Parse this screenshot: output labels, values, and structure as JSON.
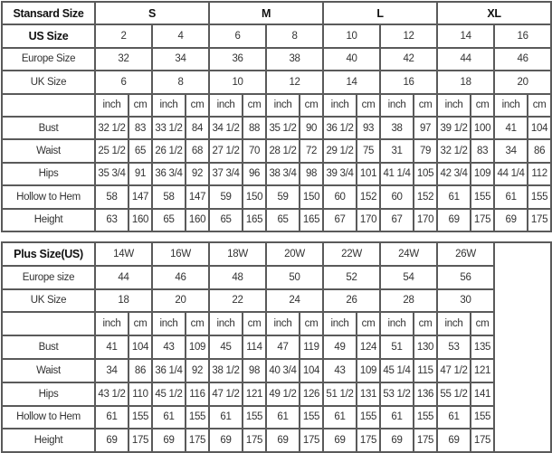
{
  "standard": {
    "title": "Stansard Size",
    "groups": [
      "S",
      "M",
      "L",
      "XL"
    ],
    "us_label": "US Size",
    "us": [
      "2",
      "4",
      "6",
      "8",
      "10",
      "12",
      "14",
      "16"
    ],
    "eu_label": "Europe Size",
    "eu": [
      "32",
      "34",
      "36",
      "38",
      "40",
      "42",
      "44",
      "46"
    ],
    "uk_label": "UK Size",
    "uk": [
      "6",
      "8",
      "10",
      "12",
      "14",
      "16",
      "18",
      "20"
    ],
    "unit_inch": "inch",
    "unit_cm": "cm",
    "rows": [
      {
        "label": "Bust",
        "values": [
          "32 1/2",
          "83",
          "33 1/2",
          "84",
          "34 1/2",
          "88",
          "35 1/2",
          "90",
          "36 1/2",
          "93",
          "38",
          "97",
          "39 1/2",
          "100",
          "41",
          "104"
        ]
      },
      {
        "label": "Waist",
        "values": [
          "25 1/2",
          "65",
          "26 1/2",
          "68",
          "27 1/2",
          "70",
          "28 1/2",
          "72",
          "29 1/2",
          "75",
          "31",
          "79",
          "32 1/2",
          "83",
          "34",
          "86"
        ]
      },
      {
        "label": "Hips",
        "values": [
          "35 3/4",
          "91",
          "36 3/4",
          "92",
          "37 3/4",
          "96",
          "38 3/4",
          "98",
          "39 3/4",
          "101",
          "41 1/4",
          "105",
          "42 3/4",
          "109",
          "44 1/4",
          "112"
        ]
      },
      {
        "label": "Hollow to Hem",
        "values": [
          "58",
          "147",
          "58",
          "147",
          "59",
          "150",
          "59",
          "150",
          "60",
          "152",
          "60",
          "152",
          "61",
          "155",
          "61",
          "155"
        ]
      },
      {
        "label": "Height",
        "values": [
          "63",
          "160",
          "65",
          "160",
          "65",
          "165",
          "65",
          "165",
          "67",
          "170",
          "67",
          "170",
          "69",
          "175",
          "69",
          "175"
        ]
      }
    ]
  },
  "plus": {
    "title": "Plus Size(US)",
    "sizes": [
      "14W",
      "16W",
      "18W",
      "20W",
      "22W",
      "24W",
      "26W"
    ],
    "eu_label": "Europe size",
    "eu": [
      "44",
      "46",
      "48",
      "50",
      "52",
      "54",
      "56"
    ],
    "uk_label": "UK Size",
    "uk": [
      "18",
      "20",
      "22",
      "24",
      "26",
      "28",
      "30"
    ],
    "unit_inch": "inch",
    "unit_cm": "cm",
    "rows": [
      {
        "label": "Bust",
        "values": [
          "41",
          "104",
          "43",
          "109",
          "45",
          "114",
          "47",
          "119",
          "49",
          "124",
          "51",
          "130",
          "53",
          "135"
        ]
      },
      {
        "label": "Waist",
        "values": [
          "34",
          "86",
          "36 1/4",
          "92",
          "38 1/2",
          "98",
          "40 3/4",
          "104",
          "43",
          "109",
          "45 1/4",
          "115",
          "47 1/2",
          "121"
        ]
      },
      {
        "label": "Hips",
        "values": [
          "43 1/2",
          "110",
          "45 1/2",
          "116",
          "47 1/2",
          "121",
          "49 1/2",
          "126",
          "51 1/2",
          "131",
          "53 1/2",
          "136",
          "55 1/2",
          "141"
        ]
      },
      {
        "label": "Hollow to Hem",
        "values": [
          "61",
          "155",
          "61",
          "155",
          "61",
          "155",
          "61",
          "155",
          "61",
          "155",
          "61",
          "155",
          "61",
          "155"
        ]
      },
      {
        "label": "Height",
        "values": [
          "69",
          "175",
          "69",
          "175",
          "69",
          "175",
          "69",
          "175",
          "69",
          "175",
          "69",
          "175",
          "69",
          "175"
        ]
      }
    ]
  }
}
